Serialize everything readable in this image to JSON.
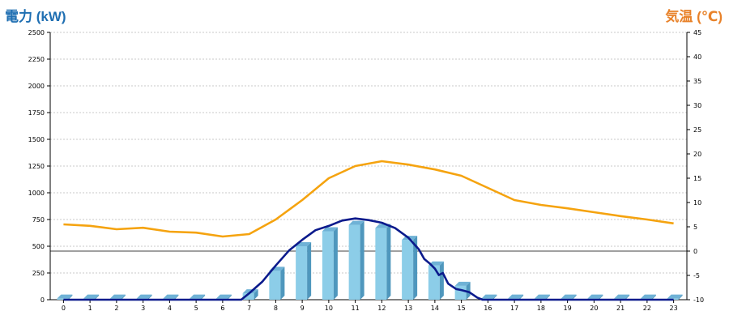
{
  "chart_data": {
    "type": "bar+line",
    "title_left": "電力 (kW)",
    "title_right": "気温 (℃)",
    "x": [
      0,
      1,
      2,
      3,
      4,
      5,
      6,
      7,
      8,
      9,
      10,
      11,
      12,
      13,
      14,
      15,
      16,
      17,
      18,
      19,
      20,
      21,
      22,
      23
    ],
    "x_tick_labels": [
      "0",
      "1",
      "2",
      "3",
      "4",
      "5",
      "6",
      "7",
      "8",
      "9",
      "10",
      "11",
      "12",
      "13",
      "14",
      "15",
      "16",
      "17",
      "18",
      "19",
      "20",
      "21",
      "22",
      "23"
    ],
    "y_left_ticks": [
      0,
      250,
      500,
      750,
      1000,
      1250,
      1500,
      1750,
      2000,
      2250,
      2500
    ],
    "y_left_range": [
      0,
      2500
    ],
    "y_right_ticks": [
      -10,
      -5,
      0,
      5,
      10,
      15,
      20,
      25,
      30,
      35,
      40,
      45
    ],
    "y_right_range": [
      -10,
      45
    ],
    "grid": true,
    "series": [
      {
        "type": "bar",
        "axis": "left",
        "color": "#8ccde8",
        "values": [
          10,
          10,
          10,
          10,
          10,
          10,
          10,
          60,
          270,
          500,
          640,
          700,
          670,
          560,
          320,
          130,
          10,
          10,
          10,
          10,
          10,
          10,
          10,
          10
        ]
      },
      {
        "type": "line",
        "axis": "left",
        "color": "#0b1a8c",
        "points": [
          [
            0,
            0
          ],
          [
            6,
            0
          ],
          [
            6.7,
            0
          ],
          [
            7,
            60
          ],
          [
            7.5,
            170
          ],
          [
            8,
            320
          ],
          [
            8.5,
            460
          ],
          [
            9,
            560
          ],
          [
            9.5,
            650
          ],
          [
            10,
            690
          ],
          [
            10.5,
            740
          ],
          [
            11,
            760
          ],
          [
            11.5,
            745
          ],
          [
            12,
            720
          ],
          [
            12.5,
            670
          ],
          [
            13,
            580
          ],
          [
            13.4,
            470
          ],
          [
            13.6,
            380
          ],
          [
            13.8,
            340
          ],
          [
            14,
            290
          ],
          [
            14.15,
            230
          ],
          [
            14.3,
            250
          ],
          [
            14.5,
            150
          ],
          [
            14.8,
            100
          ],
          [
            15,
            90
          ],
          [
            15.3,
            70
          ],
          [
            15.6,
            20
          ],
          [
            15.8,
            0
          ],
          [
            23,
            0
          ]
        ]
      },
      {
        "type": "line",
        "axis": "right",
        "color": "#f5a30f",
        "values": [
          5.5,
          5.2,
          4.5,
          4.8,
          4.0,
          3.8,
          3.0,
          3.5,
          6.5,
          10.5,
          15.0,
          17.5,
          18.5,
          17.8,
          16.8,
          15.5,
          13.0,
          10.5,
          9.5,
          8.8,
          8.0,
          7.2,
          6.5,
          5.7
        ]
      }
    ]
  }
}
